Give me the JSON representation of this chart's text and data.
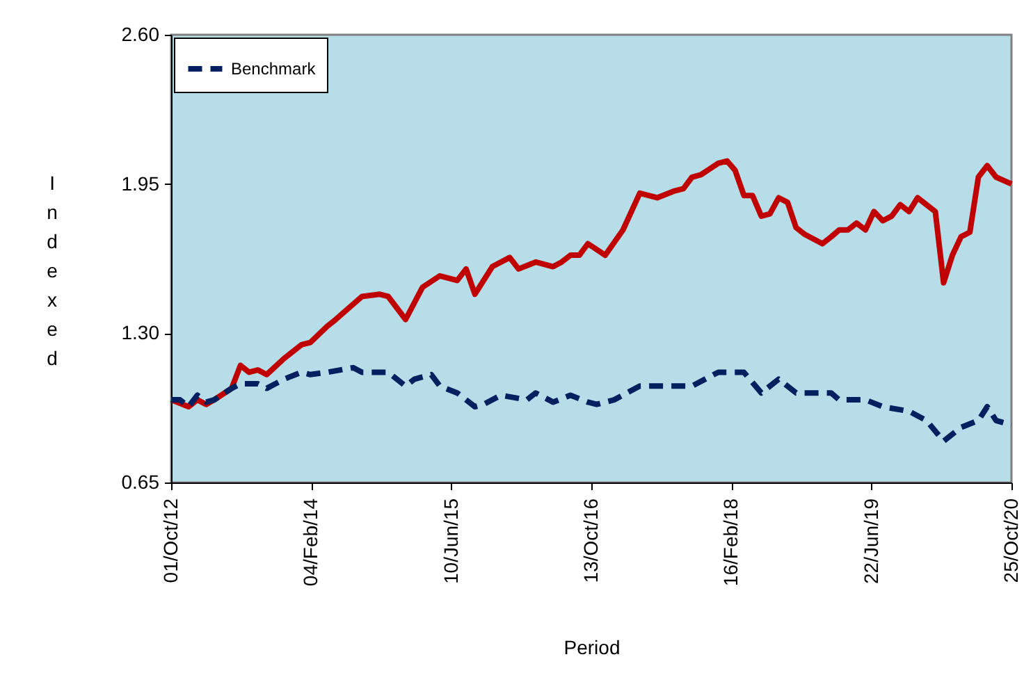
{
  "chart_data": {
    "type": "line",
    "xlabel": "Period",
    "ylabel": "Indexed",
    "ylim": [
      0.65,
      2.6
    ],
    "yticks": [
      {
        "value": 0.65,
        "label": "0.65"
      },
      {
        "value": 1.3,
        "label": "1.30"
      },
      {
        "value": 1.95,
        "label": "1.95"
      },
      {
        "value": 2.6,
        "label": "2.60"
      }
    ],
    "xlim": [
      "2012-10-01",
      "2020-10-25"
    ],
    "xticks": [
      {
        "value": "2012-10-01",
        "label": "01/Oct/12"
      },
      {
        "value": "2014-02-04",
        "label": "04/Feb/14"
      },
      {
        "value": "2015-06-10",
        "label": "10/Jun/15"
      },
      {
        "value": "2016-10-13",
        "label": "13/Oct/16"
      },
      {
        "value": "2018-02-16",
        "label": "16/Feb/18"
      },
      {
        "value": "2019-06-22",
        "label": "22/Jun/19"
      },
      {
        "value": "2020-10-25",
        "label": "25/Oct/20"
      }
    ],
    "grid": false,
    "legend": "top left",
    "marker": "none",
    "series": [
      {
        "color": "#c00000",
        "line_style": "solid",
        "x": [
          "2012-10",
          "2012-12",
          "2013-01",
          "2013-02",
          "2013-03",
          "2013-05",
          "2013-06",
          "2013-07",
          "2013-08",
          "2013-09",
          "2013-11",
          "2014-01",
          "2014-02",
          "2014-04",
          "2014-05",
          "2014-08",
          "2014-10",
          "2014-11",
          "2015-01",
          "2015-03",
          "2015-05",
          "2015-07",
          "2015-08",
          "2015-09",
          "2015-11",
          "2016-01",
          "2016-02",
          "2016-04",
          "2016-06",
          "2016-07",
          "2016-08",
          "2016-09",
          "2016-10",
          "2016-12",
          "2017-02",
          "2017-04",
          "2017-06",
          "2017-08",
          "2017-09",
          "2017-10",
          "2017-11",
          "2018-01",
          "2018-02",
          "2018-03",
          "2018-04",
          "2018-05",
          "2018-06",
          "2018-07",
          "2018-08",
          "2018-09",
          "2018-10",
          "2018-11",
          "2019-01",
          "2019-02",
          "2019-03",
          "2019-04",
          "2019-05",
          "2019-06",
          "2019-07",
          "2019-08",
          "2019-09",
          "2019-10",
          "2019-11",
          "2019-12",
          "2020-02",
          "2020-03",
          "2020-04",
          "2020-05",
          "2020-06",
          "2020-07",
          "2020-08",
          "2020-09",
          "2020-10-25"
        ],
        "values": [
          1.01,
          0.98,
          1.01,
          0.99,
          1.01,
          1.06,
          1.16,
          1.13,
          1.14,
          1.12,
          1.19,
          1.25,
          1.26,
          1.33,
          1.36,
          1.46,
          1.47,
          1.46,
          1.36,
          1.5,
          1.55,
          1.53,
          1.58,
          1.47,
          1.59,
          1.63,
          1.58,
          1.61,
          1.59,
          1.61,
          1.64,
          1.64,
          1.69,
          1.64,
          1.75,
          1.91,
          1.89,
          1.92,
          1.93,
          1.98,
          1.99,
          2.04,
          2.05,
          2.01,
          1.9,
          1.9,
          1.81,
          1.82,
          1.89,
          1.87,
          1.76,
          1.73,
          1.69,
          1.72,
          1.75,
          1.75,
          1.78,
          1.75,
          1.83,
          1.79,
          1.81,
          1.86,
          1.83,
          1.89,
          1.83,
          1.52,
          1.64,
          1.72,
          1.74,
          1.98,
          2.03,
          1.98,
          1.95
        ]
      },
      {
        "name": "Benchmark",
        "color": "#002060",
        "line_style": "dashed",
        "x": [
          "2012-10",
          "2012-11",
          "2012-12",
          "2013-01",
          "2013-02",
          "2013-03",
          "2013-05",
          "2013-06",
          "2013-08",
          "2013-09",
          "2013-11",
          "2014-01",
          "2014-02",
          "2014-04",
          "2014-07",
          "2014-08",
          "2014-11",
          "2015-01",
          "2015-02",
          "2015-04",
          "2015-05",
          "2015-07",
          "2015-09",
          "2015-10",
          "2015-12",
          "2016-03",
          "2016-04",
          "2016-06",
          "2016-08",
          "2016-10",
          "2016-11",
          "2017-01",
          "2017-04",
          "2017-06",
          "2017-10",
          "2018-01",
          "2018-04",
          "2018-06",
          "2018-08",
          "2018-10",
          "2019-02",
          "2019-03",
          "2019-06",
          "2019-08",
          "2019-11",
          "2020-01",
          "2020-03",
          "2020-05",
          "2020-07",
          "2020-08",
          "2020-09",
          "2020-10-25"
        ],
        "values": [
          1.01,
          1.01,
          0.98,
          1.03,
          1.0,
          1.01,
          1.06,
          1.08,
          1.08,
          1.06,
          1.1,
          1.13,
          1.12,
          1.13,
          1.15,
          1.13,
          1.13,
          1.07,
          1.1,
          1.12,
          1.07,
          1.04,
          0.98,
          0.99,
          1.03,
          1.01,
          1.04,
          1.0,
          1.03,
          1.0,
          0.99,
          1.01,
          1.07,
          1.07,
          1.07,
          1.13,
          1.13,
          1.04,
          1.1,
          1.04,
          1.04,
          1.01,
          1.01,
          0.98,
          0.96,
          0.92,
          0.83,
          0.89,
          0.92,
          0.98,
          0.92,
          0.9
        ]
      }
    ]
  }
}
